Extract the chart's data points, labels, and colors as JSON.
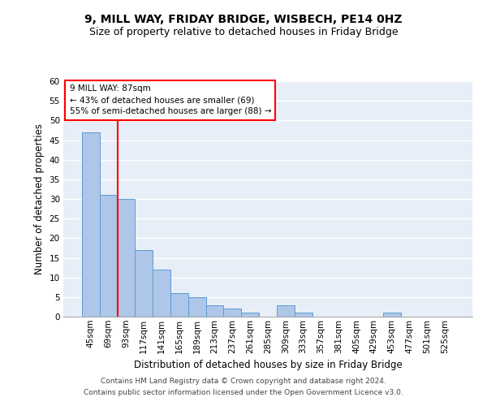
{
  "title": "9, MILL WAY, FRIDAY BRIDGE, WISBECH, PE14 0HZ",
  "subtitle": "Size of property relative to detached houses in Friday Bridge",
  "xlabel": "Distribution of detached houses by size in Friday Bridge",
  "ylabel": "Number of detached properties",
  "categories": [
    "45sqm",
    "69sqm",
    "93sqm",
    "117sqm",
    "141sqm",
    "165sqm",
    "189sqm",
    "213sqm",
    "237sqm",
    "261sqm",
    "285sqm",
    "309sqm",
    "333sqm",
    "357sqm",
    "381sqm",
    "405sqm",
    "429sqm",
    "453sqm",
    "477sqm",
    "501sqm",
    "525sqm"
  ],
  "values": [
    47,
    31,
    30,
    17,
    12,
    6,
    5,
    3,
    2,
    1,
    0,
    3,
    1,
    0,
    0,
    0,
    0,
    1,
    0,
    0,
    0
  ],
  "bar_color": "#aec6e8",
  "bar_edgecolor": "#5b9bd5",
  "background_color": "#e8eef7",
  "grid_color": "#ffffff",
  "ylim": [
    0,
    60
  ],
  "yticks": [
    0,
    5,
    10,
    15,
    20,
    25,
    30,
    35,
    40,
    45,
    50,
    55,
    60
  ],
  "annotation_box_text": [
    "9 MILL WAY: 87sqm",
    "← 43% of detached houses are smaller (69)",
    "55% of semi-detached houses are larger (88) →"
  ],
  "vline_x": 1.5,
  "footer_line1": "Contains HM Land Registry data © Crown copyright and database right 2024.",
  "footer_line2": "Contains public sector information licensed under the Open Government Licence v3.0.",
  "title_fontsize": 10,
  "subtitle_fontsize": 9,
  "xlabel_fontsize": 8.5,
  "ylabel_fontsize": 8.5,
  "tick_fontsize": 7.5,
  "annotation_fontsize": 7.5,
  "footer_fontsize": 6.5
}
